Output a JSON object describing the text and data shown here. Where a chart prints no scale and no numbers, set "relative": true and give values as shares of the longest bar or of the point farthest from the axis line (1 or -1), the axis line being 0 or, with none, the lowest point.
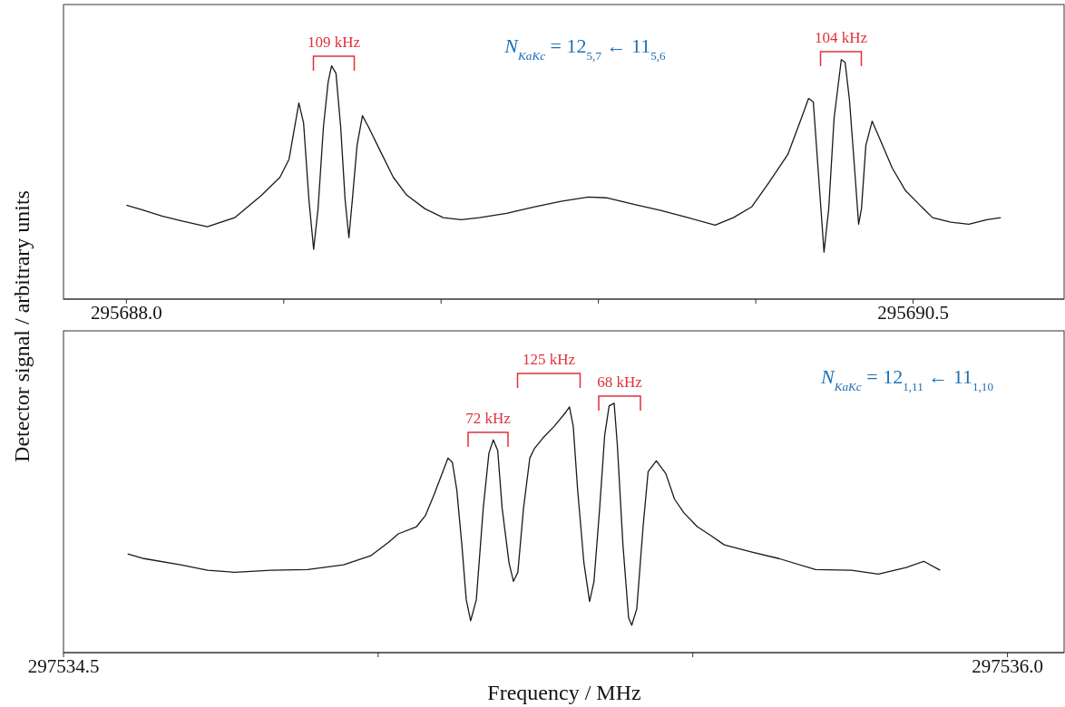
{
  "chart_data": [
    {
      "type": "line",
      "relative": true,
      "ylabel": "Detector signal / arbitrary units",
      "xlim": [
        295687.8,
        295690.98
      ],
      "xticks": [
        {
          "value": 295688,
          "label": "295688.0"
        },
        {
          "value": 295688.5,
          "label": null
        },
        {
          "value": 295689,
          "label": null
        },
        {
          "value": 295689.5,
          "label": null
        },
        {
          "value": 295690,
          "label": null
        },
        {
          "value": 295690.5,
          "label": "295690.5"
        }
      ],
      "x": [
        295688.0,
        295688.056,
        295688.113,
        295688.171,
        295688.257,
        295688.344,
        295688.43,
        295688.488,
        295688.517,
        295688.548,
        295688.563,
        295688.58,
        295688.595,
        295688.609,
        295688.626,
        295688.641,
        295688.652,
        295688.666,
        295688.681,
        295688.695,
        295688.707,
        295688.718,
        295688.733,
        295688.75,
        295688.77,
        295688.805,
        295688.848,
        295688.891,
        295688.949,
        295689.007,
        295689.064,
        295689.122,
        295689.208,
        295689.295,
        295689.381,
        295689.468,
        295689.525,
        295689.612,
        295689.698,
        295689.785,
        295689.871,
        295689.929,
        295689.987,
        295690.044,
        295690.102,
        295690.145,
        295690.168,
        295690.183,
        295690.197,
        295690.217,
        295690.232,
        295690.249,
        295690.272,
        295690.284,
        295690.298,
        295690.313,
        295690.327,
        295690.336,
        295690.35,
        295690.37,
        295690.391,
        295690.434,
        295690.476,
        295690.519,
        295690.562,
        295690.62,
        295690.677,
        295690.735,
        295690.779
      ],
      "series": [
        {
          "color": "#1a1a1a",
          "values": [
            0.392,
            0.37,
            0.347,
            0.328,
            0.302,
            0.34,
            0.434,
            0.509,
            0.585,
            0.819,
            0.736,
            0.415,
            0.208,
            0.377,
            0.717,
            0.906,
            0.974,
            0.943,
            0.717,
            0.415,
            0.257,
            0.415,
            0.642,
            0.766,
            0.717,
            0.623,
            0.509,
            0.434,
            0.377,
            0.34,
            0.332,
            0.34,
            0.358,
            0.385,
            0.408,
            0.426,
            0.423,
            0.396,
            0.37,
            0.34,
            0.309,
            0.34,
            0.385,
            0.491,
            0.604,
            0.755,
            0.838,
            0.823,
            0.566,
            0.196,
            0.377,
            0.755,
            1.0,
            0.989,
            0.83,
            0.566,
            0.313,
            0.377,
            0.642,
            0.743,
            0.679,
            0.547,
            0.453,
            0.396,
            0.34,
            0.321,
            0.313,
            0.332,
            0.34
          ]
        }
      ],
      "annotations": [
        "109 kHz",
        "104 kHz",
        "N$_{KaKc}$ = 12$_{5,7}$ ← 11$_{5,6}$"
      ]
    },
    {
      "type": "line",
      "relative": true,
      "xlabel": "Frequency / MHz",
      "xlim": [
        297534.5,
        297536.09
      ],
      "xticks": [
        {
          "value": 297534.5,
          "label": "297534.5"
        },
        {
          "value": 297535,
          "label": null
        },
        {
          "value": 297535.5,
          "label": null
        },
        {
          "value": 297536,
          "label": "297536.0"
        }
      ],
      "x": [
        297534.602,
        297534.628,
        297534.686,
        297534.729,
        297534.772,
        297534.83,
        297534.888,
        297534.945,
        297534.988,
        297535.017,
        297535.032,
        297535.061,
        297535.075,
        297535.089,
        297535.111,
        297535.118,
        297535.125,
        297535.133,
        297535.14,
        297535.147,
        297535.156,
        297535.167,
        297535.176,
        297535.183,
        297535.19,
        297535.197,
        297535.208,
        297535.215,
        297535.222,
        297535.231,
        297535.241,
        297535.248,
        297535.262,
        297535.28,
        297535.298,
        297535.304,
        297535.31,
        297535.317,
        297535.327,
        297535.336,
        297535.343,
        297535.352,
        297535.36,
        297535.367,
        297535.375,
        297535.38,
        297535.389,
        297535.398,
        297535.403,
        297535.411,
        297535.421,
        297535.429,
        297535.442,
        297535.457,
        297535.471,
        297535.486,
        297535.507,
        297535.529,
        297535.55,
        297535.594,
        297535.637,
        297535.695,
        297535.752,
        297535.795,
        297535.839,
        297535.867,
        297535.893
      ],
      "series": [
        {
          "color": "#1a1a1a",
          "values": [
            0.396,
            0.377,
            0.352,
            0.33,
            0.322,
            0.33,
            0.333,
            0.352,
            0.388,
            0.443,
            0.476,
            0.505,
            0.549,
            0.634,
            0.78,
            0.762,
            0.652,
            0.432,
            0.212,
            0.128,
            0.212,
            0.579,
            0.799,
            0.853,
            0.81,
            0.579,
            0.359,
            0.286,
            0.322,
            0.579,
            0.78,
            0.817,
            0.861,
            0.908,
            0.963,
            0.985,
            0.908,
            0.652,
            0.359,
            0.205,
            0.286,
            0.579,
            0.872,
            0.989,
            1.0,
            0.835,
            0.432,
            0.139,
            0.11,
            0.176,
            0.505,
            0.725,
            0.769,
            0.718,
            0.615,
            0.56,
            0.505,
            0.469,
            0.432,
            0.403,
            0.377,
            0.333,
            0.33,
            0.315,
            0.341,
            0.366,
            0.33
          ]
        }
      ],
      "annotations": [
        "72 kHz",
        "125 kHz",
        "68 kHz",
        "N$_{KaKc}$ = 12$_{1,11}$ ← 11$_{1,10}$"
      ]
    }
  ]
}
